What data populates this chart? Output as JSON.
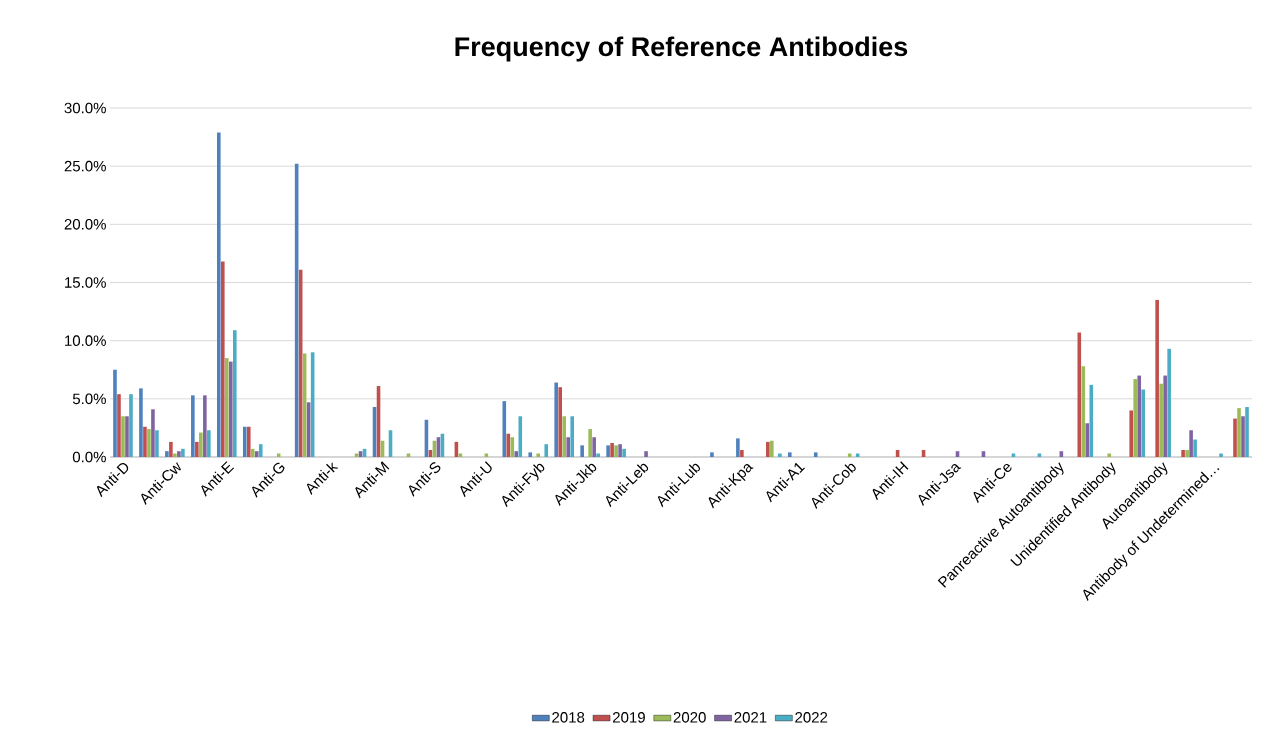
{
  "chart_data": {
    "type": "bar",
    "title": "Frequency of Reference Antibodies",
    "categories": [
      "Anti-D",
      null,
      "Anti-Cw",
      null,
      "Anti-E",
      null,
      "Anti-G",
      null,
      "Anti-k",
      null,
      "Anti-M",
      null,
      "Anti-S",
      null,
      "Anti-U",
      null,
      "Anti-Fyb",
      null,
      "Anti-Jkb",
      null,
      "Anti-Leb",
      null,
      "Anti-Lub",
      null,
      "Anti-Kpa",
      null,
      "Anti-A1",
      null,
      "Anti-Cob",
      null,
      "Anti-IH",
      null,
      "Anti-Jsa",
      null,
      "Anti-Ce",
      null,
      "Panreactive Autoantibody",
      null,
      "Unidentified Antibody",
      null,
      "Autoantibody",
      null,
      "Antibody of Undetermined…",
      null
    ],
    "series": [
      {
        "name": "2018",
        "color": "#4f81bd",
        "values": [
          7.5,
          5.9,
          0.5,
          5.3,
          27.9,
          2.6,
          0,
          25.2,
          0,
          0,
          4.3,
          0,
          3.2,
          0,
          0,
          4.8,
          0.4,
          6.4,
          1.0,
          1.0,
          0,
          0,
          0,
          0.4,
          1.6,
          0,
          0.4,
          0.4,
          0,
          0,
          0,
          0,
          0,
          0,
          0,
          0,
          0,
          0,
          0,
          0,
          0,
          0,
          0,
          0
        ]
      },
      {
        "name": "2019",
        "color": "#c0504d",
        "values": [
          5.4,
          2.6,
          1.3,
          1.3,
          16.8,
          2.6,
          0,
          16.1,
          0,
          0,
          6.1,
          0,
          0.6,
          1.3,
          0,
          2.0,
          0,
          6.0,
          0,
          1.2,
          0,
          0,
          0,
          0,
          0.6,
          1.3,
          0,
          0,
          0,
          0,
          0.6,
          0.6,
          0,
          0,
          0,
          0,
          0,
          10.7,
          0,
          4.0,
          13.5,
          0.6,
          0,
          3.3
        ]
      },
      {
        "name": "2020",
        "color": "#9bbb59",
        "values": [
          3.5,
          2.4,
          0.3,
          2.1,
          8.5,
          0.7,
          0.3,
          8.9,
          0,
          0.3,
          1.4,
          0.3,
          1.4,
          0.3,
          0.3,
          1.7,
          0.3,
          3.5,
          2.4,
          1.0,
          0,
          0,
          0,
          0,
          0,
          1.4,
          0,
          0,
          0.3,
          0,
          0,
          0,
          0,
          0,
          0,
          0,
          0,
          7.8,
          0.3,
          6.7,
          6.3,
          0.6,
          0,
          4.2
        ]
      },
      {
        "name": "2021",
        "color": "#8064a2",
        "values": [
          3.5,
          4.1,
          0.5,
          5.3,
          8.2,
          0.5,
          0,
          4.7,
          0,
          0.5,
          0,
          0,
          1.7,
          0,
          0,
          0.5,
          0,
          1.7,
          1.7,
          1.1,
          0.5,
          0,
          0,
          0,
          0,
          0,
          0,
          0,
          0,
          0,
          0,
          0,
          0.5,
          0.5,
          0,
          0,
          0.5,
          2.9,
          0,
          7.0,
          7.0,
          2.3,
          0,
          3.5
        ]
      },
      {
        "name": "2022",
        "color": "#4bacc6",
        "values": [
          5.4,
          2.3,
          0.7,
          2.3,
          10.9,
          1.1,
          0,
          9.0,
          0,
          0.7,
          2.3,
          0,
          2.0,
          0,
          0,
          3.5,
          1.1,
          3.5,
          0.3,
          0.7,
          0,
          0,
          0,
          0,
          0,
          0.3,
          0,
          0,
          0.3,
          0,
          0,
          0,
          0,
          0,
          0.3,
          0.3,
          0,
          6.2,
          0,
          5.8,
          9.3,
          1.5,
          0.3,
          4.3
        ]
      }
    ],
    "ylim": [
      0,
      30
    ],
    "yticks": [
      {
        "value": 0,
        "label": "0.0%"
      },
      {
        "value": 5,
        "label": "5.0%"
      },
      {
        "value": 10,
        "label": "10.0%"
      },
      {
        "value": 15,
        "label": "15.0%"
      },
      {
        "value": 20,
        "label": "20.0%"
      },
      {
        "value": 25,
        "label": "25.0%"
      },
      {
        "value": 30,
        "label": "30.0%"
      }
    ],
    "grid": "y",
    "legend": "bottom"
  }
}
